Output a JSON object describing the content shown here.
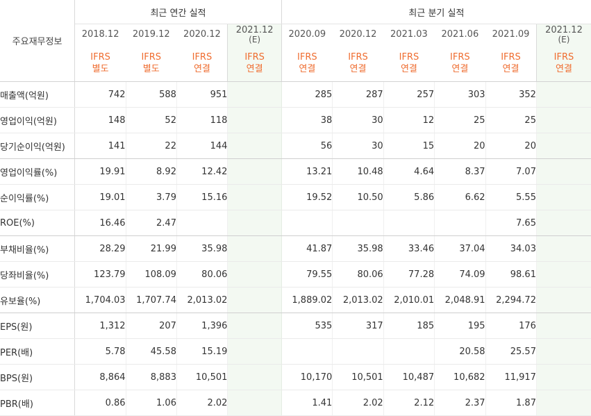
{
  "header": {
    "title": "주요재무정보",
    "annual_group": "최근 연간 실적",
    "quarter_group": "최근 분기 실적",
    "annual_periods": [
      {
        "period": "2018.12",
        "sub": "",
        "type1": "IFRS",
        "type2": "별도",
        "estimate": false
      },
      {
        "period": "2019.12",
        "sub": "",
        "type1": "IFRS",
        "type2": "별도",
        "estimate": false
      },
      {
        "period": "2020.12",
        "sub": "",
        "type1": "IFRS",
        "type2": "연결",
        "estimate": false
      },
      {
        "period": "2021.12",
        "sub": "(E)",
        "type1": "IFRS",
        "type2": "연결",
        "estimate": true
      }
    ],
    "quarter_periods": [
      {
        "period": "2020.09",
        "sub": "",
        "type1": "IFRS",
        "type2": "연결",
        "estimate": false
      },
      {
        "period": "2020.12",
        "sub": "",
        "type1": "IFRS",
        "type2": "연결",
        "estimate": false
      },
      {
        "period": "2021.03",
        "sub": "",
        "type1": "IFRS",
        "type2": "연결",
        "estimate": false
      },
      {
        "period": "2021.06",
        "sub": "",
        "type1": "IFRS",
        "type2": "연결",
        "estimate": false
      },
      {
        "period": "2021.09",
        "sub": "",
        "type1": "IFRS",
        "type2": "연결",
        "estimate": false
      },
      {
        "period": "2021.12",
        "sub": "(E)",
        "type1": "IFRS",
        "type2": "연결",
        "estimate": true
      }
    ]
  },
  "rows": [
    {
      "label": "매출액(억원)",
      "annual": [
        "742",
        "588",
        "951",
        ""
      ],
      "quarter": [
        "285",
        "287",
        "257",
        "303",
        "352",
        ""
      ],
      "group_end": false
    },
    {
      "label": "영업이익(억원)",
      "annual": [
        "148",
        "52",
        "118",
        ""
      ],
      "quarter": [
        "38",
        "30",
        "12",
        "25",
        "25",
        ""
      ],
      "group_end": false
    },
    {
      "label": "당기순이익(억원)",
      "annual": [
        "141",
        "22",
        "144",
        ""
      ],
      "quarter": [
        "56",
        "30",
        "15",
        "20",
        "20",
        ""
      ],
      "group_end": true
    },
    {
      "label": "영업이익률(%)",
      "annual": [
        "19.91",
        "8.92",
        "12.42",
        ""
      ],
      "quarter": [
        "13.21",
        "10.48",
        "4.64",
        "8.37",
        "7.07",
        ""
      ],
      "group_end": false
    },
    {
      "label": "순이익률(%)",
      "annual": [
        "19.01",
        "3.79",
        "15.16",
        ""
      ],
      "quarter": [
        "19.52",
        "10.50",
        "5.86",
        "6.62",
        "5.55",
        ""
      ],
      "group_end": false
    },
    {
      "label": "ROE(%)",
      "annual": [
        "16.46",
        "2.47",
        "",
        ""
      ],
      "quarter": [
        "",
        "",
        "",
        "",
        "7.65",
        ""
      ],
      "group_end": true
    },
    {
      "label": "부채비율(%)",
      "annual": [
        "28.29",
        "21.99",
        "35.98",
        ""
      ],
      "quarter": [
        "41.87",
        "35.98",
        "33.46",
        "37.04",
        "34.03",
        ""
      ],
      "group_end": false
    },
    {
      "label": "당좌비율(%)",
      "annual": [
        "123.79",
        "108.09",
        "80.06",
        ""
      ],
      "quarter": [
        "79.55",
        "80.06",
        "77.28",
        "74.09",
        "98.61",
        ""
      ],
      "group_end": false
    },
    {
      "label": "유보율(%)",
      "annual": [
        "1,704.03",
        "1,707.74",
        "2,013.02",
        ""
      ],
      "quarter": [
        "1,889.02",
        "2,013.02",
        "2,010.01",
        "2,048.91",
        "2,294.72",
        ""
      ],
      "group_end": true
    },
    {
      "label": "EPS(원)",
      "annual": [
        "1,312",
        "207",
        "1,396",
        ""
      ],
      "quarter": [
        "535",
        "317",
        "185",
        "195",
        "176",
        ""
      ],
      "group_end": false
    },
    {
      "label": "PER(배)",
      "annual": [
        "5.78",
        "45.58",
        "15.19",
        ""
      ],
      "quarter": [
        "",
        "",
        "",
        "20.58",
        "25.57",
        ""
      ],
      "group_end": false
    },
    {
      "label": "BPS(원)",
      "annual": [
        "8,864",
        "8,883",
        "10,501",
        ""
      ],
      "quarter": [
        "10,170",
        "10,501",
        "10,487",
        "10,682",
        "11,917",
        ""
      ],
      "group_end": false
    },
    {
      "label": "PBR(배)",
      "annual": [
        "0.86",
        "1.06",
        "2.02",
        ""
      ],
      "quarter": [
        "1.41",
        "2.02",
        "2.12",
        "2.37",
        "1.87",
        ""
      ],
      "group_end": false
    }
  ],
  "colors": {
    "accent": "#ef6c2f",
    "estimate_bg": "#f3f9f2"
  }
}
